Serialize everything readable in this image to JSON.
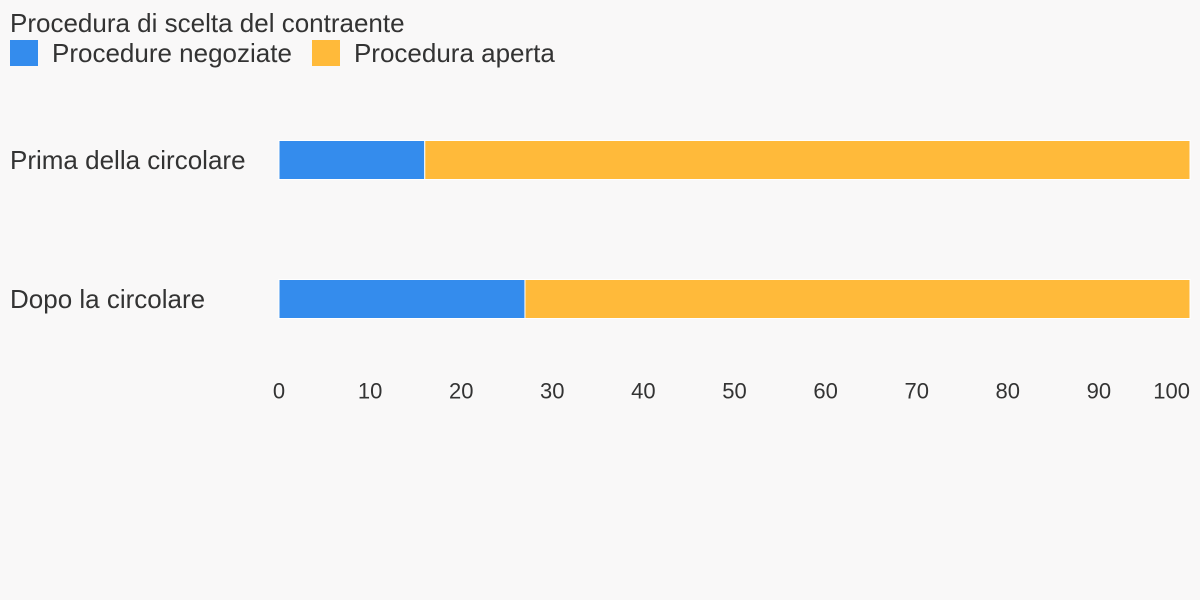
{
  "chart_data": {
    "type": "bar",
    "orientation": "horizontal",
    "stacked": true,
    "title": "Procedura di scelta del contraente",
    "categories": [
      "Prima della circolare",
      "Dopo la circolare"
    ],
    "series": [
      {
        "name": "Procedure negoziate",
        "color": "#348ced",
        "values": [
          16,
          27
        ]
      },
      {
        "name": "Procedura aperta",
        "color": "#ffba3a",
        "values": [
          84,
          73
        ]
      }
    ],
    "xlim": [
      0,
      100
    ],
    "xticks": [
      "0",
      "10",
      "20",
      "30",
      "40",
      "50",
      "60",
      "70",
      "80",
      "90",
      "100"
    ],
    "grid": false,
    "legend_position": "top-left"
  }
}
